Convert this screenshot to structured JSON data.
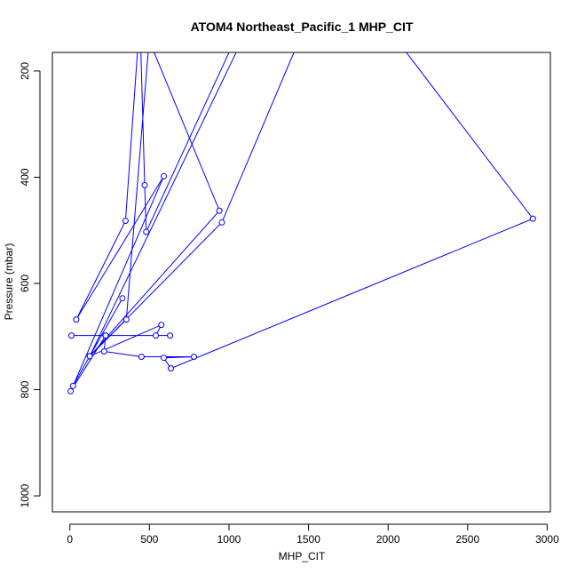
{
  "chart_data": {
    "type": "line",
    "title": "ATOM4 Northeast_Pacific_1 MHP_CIT",
    "xlabel": "MHP_CIT",
    "ylabel": "Pressure (mbar)",
    "xlim": [
      -110,
      3020
    ],
    "ylim": [
      1030,
      165
    ],
    "y_inverted": true,
    "xticks": [
      0,
      500,
      1000,
      1500,
      2000,
      2500,
      3000
    ],
    "yticks": [
      200,
      400,
      600,
      800,
      1000
    ],
    "series": [
      {
        "color": "#0000ff",
        "points": [
          [
            5,
            803
          ],
          [
            225,
            698
          ],
          [
            10,
            698
          ],
          [
            630,
            698
          ],
          [
            540,
            698
          ],
          [
            575,
            678
          ],
          [
            125,
            737
          ],
          [
            355,
            668
          ],
          [
            510,
            100
          ],
          [
            440,
            100
          ],
          [
            350,
            482
          ],
          [
            40,
            668
          ],
          [
            590,
            398
          ],
          [
            20,
            793
          ],
          [
            330,
            628
          ],
          [
            125,
            737
          ],
          [
            1150,
            100
          ],
          [
            1100,
            100
          ],
          [
            480,
            503
          ],
          [
            470,
            415
          ],
          [
            440,
            100
          ],
          [
            940,
            463
          ],
          [
            125,
            737
          ],
          [
            955,
            485
          ],
          [
            1500,
            100
          ],
          [
            1950,
            100
          ],
          [
            2910,
            478
          ],
          [
            635,
            760
          ],
          [
            590,
            740
          ],
          [
            780,
            738
          ],
          [
            450,
            738
          ],
          [
            215,
            728
          ],
          [
            225,
            698
          ]
        ]
      }
    ]
  }
}
